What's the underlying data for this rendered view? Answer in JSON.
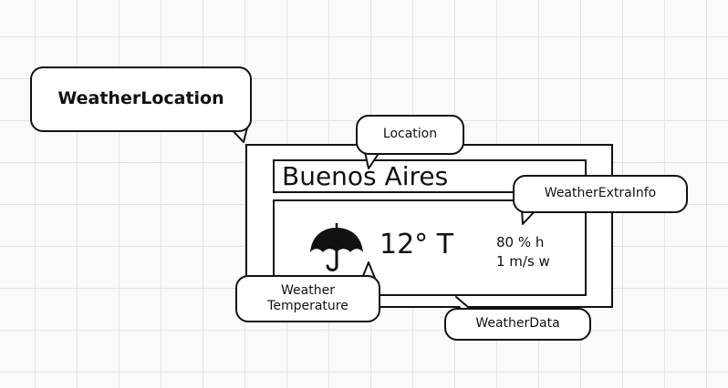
{
  "labels": {
    "weather_location": "WeatherLocation",
    "location": "Location",
    "weather_extra_info": "WeatherExtraInfo",
    "weather_temperature_line1": "Weather",
    "weather_temperature_line2": "Temperature",
    "weather_data": "WeatherData"
  },
  "widget": {
    "city": "Buenos Aires",
    "temperature": "12° T",
    "humidity": "80 % h",
    "wind": "1 m/s w",
    "icon": "umbrella-icon"
  }
}
